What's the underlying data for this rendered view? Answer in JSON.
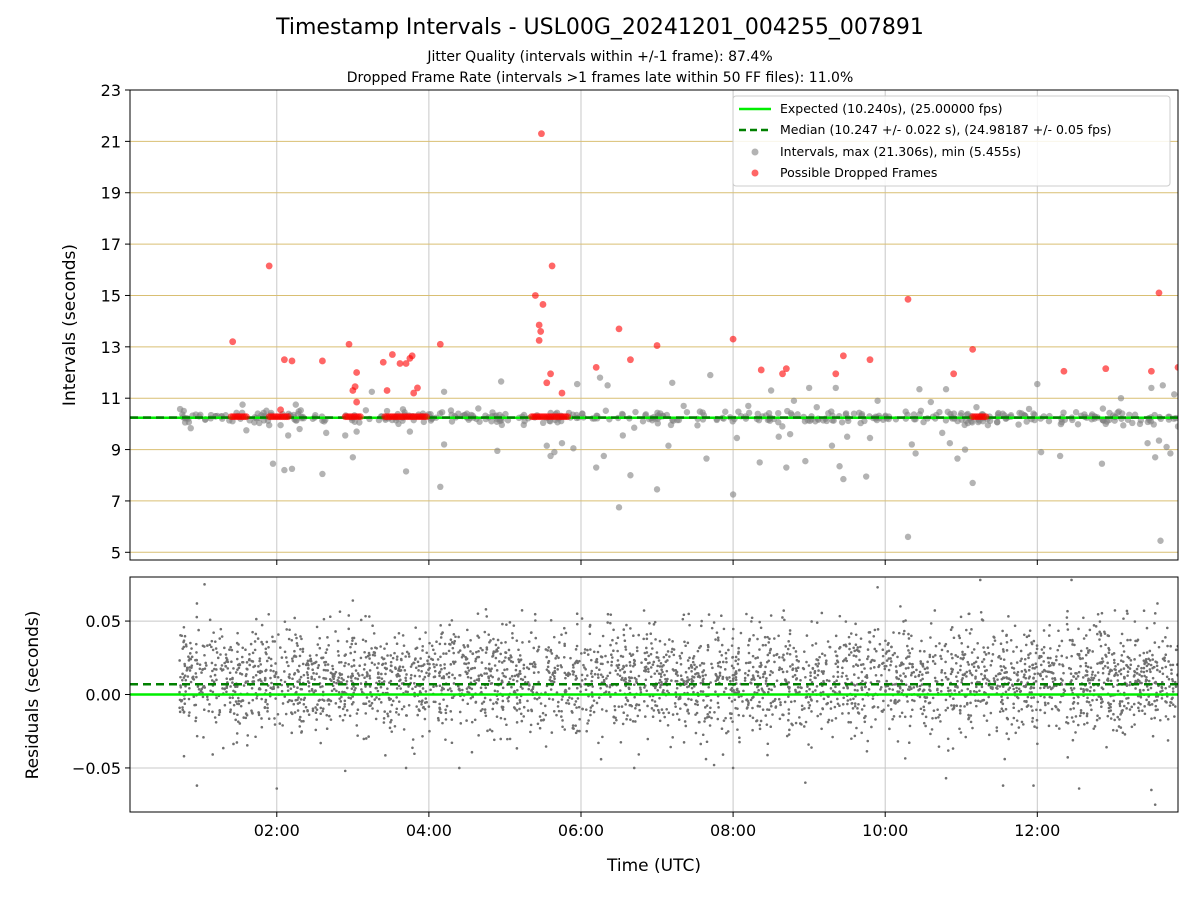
{
  "colors": {
    "expected": "#00ee00",
    "median": "#008000",
    "intervals": "#808080",
    "dropped": "#ff0000",
    "hgrid": "#d9bf73",
    "vgrid": "#c8c8c8",
    "residual_points": "#707070"
  },
  "header": {
    "title": "Timestamp Intervals - USL00G_20241201_004255_007891",
    "jitter_line": "Jitter Quality (intervals within +/-1 frame): 87.4%",
    "dropped_line": "Dropped Frame Rate (intervals >1 frames late within 50 FF files): 11.0%"
  },
  "chart_data": [
    {
      "type": "scatter",
      "panel": "intervals",
      "xlabel": "",
      "ylabel": "Intervals (seconds)",
      "x_unit": "hours (UTC)",
      "xlim": [
        0.07,
        13.85
      ],
      "ylim": [
        4.7,
        23
      ],
      "x_tick_values": [
        2,
        4,
        6,
        8,
        10,
        12
      ],
      "x_tick_labels": [
        "02:00",
        "04:00",
        "06:00",
        "08:00",
        "10:00",
        "12:00"
      ],
      "y_ticks": [
        5,
        7,
        9,
        11,
        13,
        15,
        17,
        19,
        21,
        23
      ],
      "horizontal_grid": true,
      "vertical_grid": true,
      "legend_position": "top-right",
      "legend": [
        {
          "label": "Expected (10.240s), (25.00000 fps)",
          "kind": "solid-line"
        },
        {
          "label": "Median (10.247 +/- 0.022 s), (24.98187 +/- 0.05 fps)",
          "kind": "dashed-line"
        },
        {
          "label": "Intervals, max (21.306s), min (5.455s)",
          "kind": "gray-marker"
        },
        {
          "label": "Possible Dropped Frames",
          "kind": "red-marker"
        }
      ],
      "reference_lines": {
        "expected": 10.24,
        "median": 10.247
      },
      "series": [
        {
          "name": "Intervals, max (21.306s), min (5.455s)",
          "band": {
            "x_range": [
              0.72,
              13.85
            ],
            "y_center": 10.25,
            "y_spread": 0.12,
            "count": 420
          },
          "outliers": [
            [
              1.55,
              10.75
            ],
            [
              1.6,
              9.75
            ],
            [
              1.75,
              10.4
            ],
            [
              1.9,
              9.95
            ],
            [
              1.95,
              8.45
            ],
            [
              2.05,
              9.95
            ],
            [
              2.1,
              8.2
            ],
            [
              2.15,
              9.55
            ],
            [
              2.2,
              8.25
            ],
            [
              2.25,
              10.75
            ],
            [
              2.3,
              9.8
            ],
            [
              2.5,
              10.25
            ],
            [
              2.6,
              8.05
            ],
            [
              2.65,
              9.65
            ],
            [
              2.9,
              9.55
            ],
            [
              3.0,
              8.7
            ],
            [
              3.05,
              9.7
            ],
            [
              3.25,
              11.25
            ],
            [
              3.45,
              10.5
            ],
            [
              3.6,
              10.0
            ],
            [
              3.7,
              8.15
            ],
            [
              3.75,
              9.7
            ],
            [
              4.15,
              7.55
            ],
            [
              4.2,
              9.2
            ],
            [
              4.2,
              11.25
            ],
            [
              4.5,
              10.4
            ],
            [
              4.65,
              10.6
            ],
            [
              4.9,
              8.95
            ],
            [
              4.95,
              11.65
            ],
            [
              5.55,
              9.15
            ],
            [
              5.6,
              8.75
            ],
            [
              5.65,
              8.9
            ],
            [
              5.75,
              9.25
            ],
            [
              5.9,
              9.05
            ],
            [
              5.95,
              11.55
            ],
            [
              6.2,
              8.3
            ],
            [
              6.25,
              11.8
            ],
            [
              6.3,
              8.75
            ],
            [
              6.35,
              11.5
            ],
            [
              6.5,
              6.75
            ],
            [
              6.55,
              9.55
            ],
            [
              6.65,
              8.0
            ],
            [
              6.7,
              9.85
            ],
            [
              7.0,
              7.45
            ],
            [
              7.15,
              9.15
            ],
            [
              7.2,
              11.6
            ],
            [
              7.35,
              10.7
            ],
            [
              7.65,
              8.65
            ],
            [
              7.7,
              11.9
            ],
            [
              8.0,
              7.25
            ],
            [
              8.05,
              9.45
            ],
            [
              8.2,
              10.7
            ],
            [
              8.35,
              8.5
            ],
            [
              8.5,
              11.3
            ],
            [
              8.6,
              9.5
            ],
            [
              8.7,
              8.3
            ],
            [
              8.75,
              9.6
            ],
            [
              8.8,
              10.9
            ],
            [
              8.95,
              8.55
            ],
            [
              9.0,
              11.4
            ],
            [
              9.1,
              10.65
            ],
            [
              9.3,
              9.15
            ],
            [
              9.35,
              11.4
            ],
            [
              9.4,
              8.35
            ],
            [
              9.45,
              7.85
            ],
            [
              9.5,
              9.5
            ],
            [
              9.75,
              7.95
            ],
            [
              9.8,
              9.45
            ],
            [
              9.9,
              10.9
            ],
            [
              10.3,
              5.6
            ],
            [
              10.35,
              9.2
            ],
            [
              10.4,
              8.85
            ],
            [
              10.45,
              11.35
            ],
            [
              10.6,
              10.85
            ],
            [
              10.75,
              9.65
            ],
            [
              10.8,
              11.35
            ],
            [
              10.85,
              9.25
            ],
            [
              10.95,
              8.65
            ],
            [
              11.05,
              9.0
            ],
            [
              11.15,
              7.7
            ],
            [
              11.2,
              10.65
            ],
            [
              11.35,
              9.95
            ],
            [
              11.95,
              10.4
            ],
            [
              12.0,
              11.55
            ],
            [
              12.05,
              8.9
            ],
            [
              12.3,
              8.75
            ],
            [
              12.85,
              8.45
            ],
            [
              12.9,
              10.0
            ],
            [
              13.1,
              11.0
            ],
            [
              13.35,
              10.0
            ],
            [
              13.45,
              9.25
            ],
            [
              13.5,
              11.4
            ],
            [
              13.55,
              8.7
            ],
            [
              13.6,
              9.35
            ],
            [
              13.65,
              11.5
            ],
            [
              13.7,
              9.1
            ],
            [
              13.75,
              8.85
            ],
            [
              13.8,
              11.15
            ],
            [
              13.62,
              5.45
            ],
            [
              13.85,
              9.9
            ]
          ]
        },
        {
          "name": "Possible Dropped Frames",
          "clusters": [
            {
              "x_range": [
                1.4,
                1.6
              ],
              "y": 10.28
            },
            {
              "x_range": [
                1.9,
                2.15
              ],
              "y": 10.28
            },
            {
              "x_range": [
                2.9,
                3.1
              ],
              "y": 10.28
            },
            {
              "x_range": [
                3.42,
                3.98
              ],
              "y": 10.28
            },
            {
              "x_range": [
                5.35,
                5.85
              ],
              "y": 10.28
            },
            {
              "x_range": [
                11.15,
                11.35
              ],
              "y": 10.28
            }
          ],
          "points": [
            [
              1.42,
              13.2
            ],
            [
              1.9,
              16.15
            ],
            [
              2.05,
              10.55
            ],
            [
              2.1,
              12.5
            ],
            [
              2.2,
              12.45
            ],
            [
              2.6,
              12.45
            ],
            [
              2.95,
              13.1
            ],
            [
              3.0,
              11.3
            ],
            [
              3.03,
              11.45
            ],
            [
              3.05,
              12.0
            ],
            [
              3.05,
              10.85
            ],
            [
              3.4,
              12.4
            ],
            [
              3.45,
              11.3
            ],
            [
              3.52,
              12.7
            ],
            [
              3.62,
              12.35
            ],
            [
              3.7,
              12.35
            ],
            [
              3.75,
              12.55
            ],
            [
              3.78,
              12.65
            ],
            [
              3.8,
              11.2
            ],
            [
              3.85,
              11.4
            ],
            [
              4.15,
              13.1
            ],
            [
              5.4,
              15.0
            ],
            [
              5.45,
              13.85
            ],
            [
              5.47,
              13.6
            ],
            [
              5.45,
              13.25
            ],
            [
              5.48,
              21.3
            ],
            [
              5.5,
              14.65
            ],
            [
              5.55,
              11.6
            ],
            [
              5.6,
              11.95
            ],
            [
              5.62,
              16.15
            ],
            [
              5.75,
              11.2
            ],
            [
              6.2,
              12.2
            ],
            [
              6.5,
              13.7
            ],
            [
              6.65,
              12.5
            ],
            [
              7.0,
              13.05
            ],
            [
              8.0,
              13.3
            ],
            [
              8.37,
              12.1
            ],
            [
              8.65,
              11.95
            ],
            [
              8.7,
              12.15
            ],
            [
              9.35,
              11.95
            ],
            [
              9.45,
              12.65
            ],
            [
              9.8,
              12.5
            ],
            [
              10.3,
              14.85
            ],
            [
              10.9,
              11.95
            ],
            [
              11.15,
              12.9
            ],
            [
              12.35,
              12.05
            ],
            [
              12.9,
              12.15
            ],
            [
              13.5,
              12.05
            ],
            [
              13.6,
              15.1
            ],
            [
              13.85,
              12.2
            ]
          ]
        }
      ]
    },
    {
      "type": "scatter",
      "panel": "residuals",
      "xlabel": "Time (UTC)",
      "ylabel": "Residuals (seconds)",
      "x_unit": "hours (UTC)",
      "xlim": [
        0.07,
        13.85
      ],
      "ylim": [
        -0.08,
        0.08
      ],
      "y_ticks": [
        0.05,
        0.0,
        -0.05
      ],
      "y_tick_labels": [
        "0.05",
        "0.00",
        "−0.05"
      ],
      "x_tick_values": [
        2,
        4,
        6,
        8,
        10,
        12
      ],
      "x_tick_labels": [
        "02:00",
        "04:00",
        "06:00",
        "08:00",
        "10:00",
        "12:00"
      ],
      "horizontal_grid": true,
      "vertical_grid": true,
      "reference_lines": {
        "expected": 0.0,
        "median": 0.007
      },
      "series": [
        {
          "name": "residuals",
          "scatter_cloud": {
            "x_range": [
              0.72,
              13.85
            ],
            "y_center": 0.01,
            "y_spread": 0.018,
            "count": 3600
          },
          "extremes": [
            [
              1.05,
              0.075
            ],
            [
              0.95,
              0.062
            ],
            [
              0.95,
              -0.062
            ],
            [
              0.75,
              0.04
            ],
            [
              0.78,
              -0.042
            ],
            [
              3.0,
              0.064
            ],
            [
              2.0,
              -0.064
            ],
            [
              2.9,
              -0.052
            ],
            [
              3.7,
              -0.05
            ],
            [
              4.4,
              -0.05
            ],
            [
              4.75,
              0.058
            ],
            [
              5.95,
              0.055
            ],
            [
              6.7,
              -0.05
            ],
            [
              7.75,
              -0.048
            ],
            [
              8.0,
              -0.05
            ],
            [
              8.95,
              -0.06
            ],
            [
              9.9,
              0.073
            ],
            [
              10.2,
              0.06
            ],
            [
              10.8,
              -0.057
            ],
            [
              11.55,
              -0.062
            ],
            [
              11.95,
              -0.062
            ],
            [
              12.55,
              -0.064
            ],
            [
              13.55,
              -0.075
            ],
            [
              13.58,
              0.062
            ],
            [
              13.5,
              -0.065
            ],
            [
              11.25,
              0.078
            ],
            [
              12.45,
              0.078
            ]
          ]
        }
      ]
    }
  ]
}
